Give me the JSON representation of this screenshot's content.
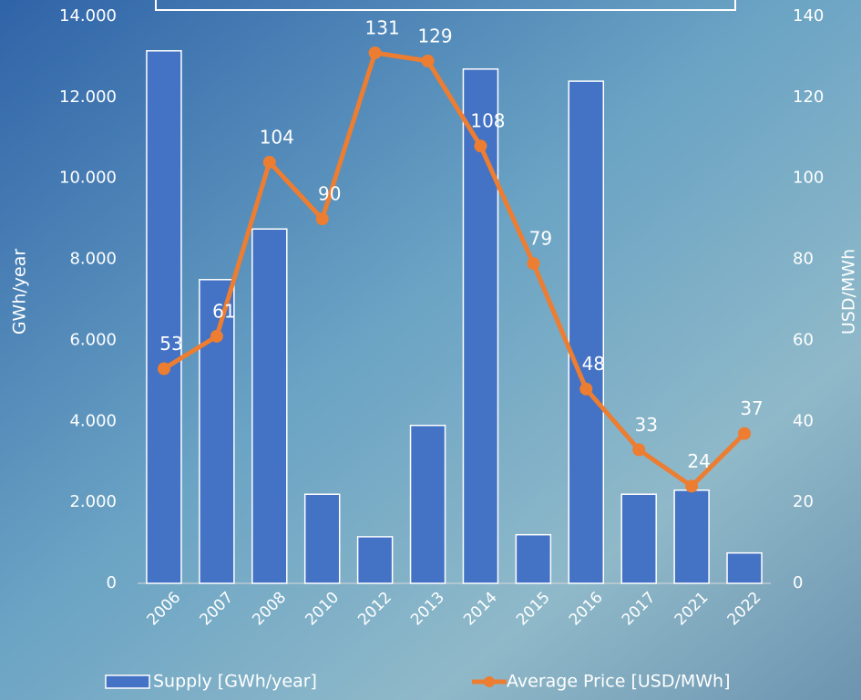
{
  "chart_data": {
    "type": "bar",
    "categories": [
      "2006",
      "2007",
      "2008",
      "2010",
      "2012",
      "2013",
      "2014",
      "2015",
      "2016",
      "2017",
      "2021",
      "2022"
    ],
    "series": [
      {
        "name": "Supply [GWh/year]",
        "type": "bar",
        "color": "#4472c4",
        "axis": "y",
        "values": [
          13150,
          7500,
          8750,
          2200,
          1150,
          3900,
          12700,
          1200,
          12400,
          2200,
          2300,
          750
        ]
      },
      {
        "name": "Average Price [USD/MWh]",
        "type": "line",
        "color": "#ed7d31",
        "axis": "y2",
        "values": [
          53,
          61,
          104,
          90,
          131,
          129,
          108,
          79,
          48,
          33,
          24,
          37
        ]
      }
    ],
    "y_label": "GWh/year",
    "y2_label": "USD/MWh",
    "ylim": [
      0,
      14000
    ],
    "yticks": [
      0,
      {
        "value": 2000,
        "label": "2.000"
      },
      {
        "value": 4000,
        "label": "4.000"
      },
      {
        "value": 6000,
        "label": "6.000"
      },
      {
        "value": 8000,
        "label": "8.000"
      },
      {
        "value": 10000,
        "label": "10.000"
      },
      {
        "value": 12000,
        "label": "12.000"
      },
      {
        "value": 14000,
        "label": "14.000"
      }
    ],
    "y2lim": [
      0,
      140
    ],
    "y2ticks": [
      0,
      20,
      40,
      60,
      80,
      100,
      120,
      140
    ],
    "legend": "bottom",
    "data_labels": true
  }
}
